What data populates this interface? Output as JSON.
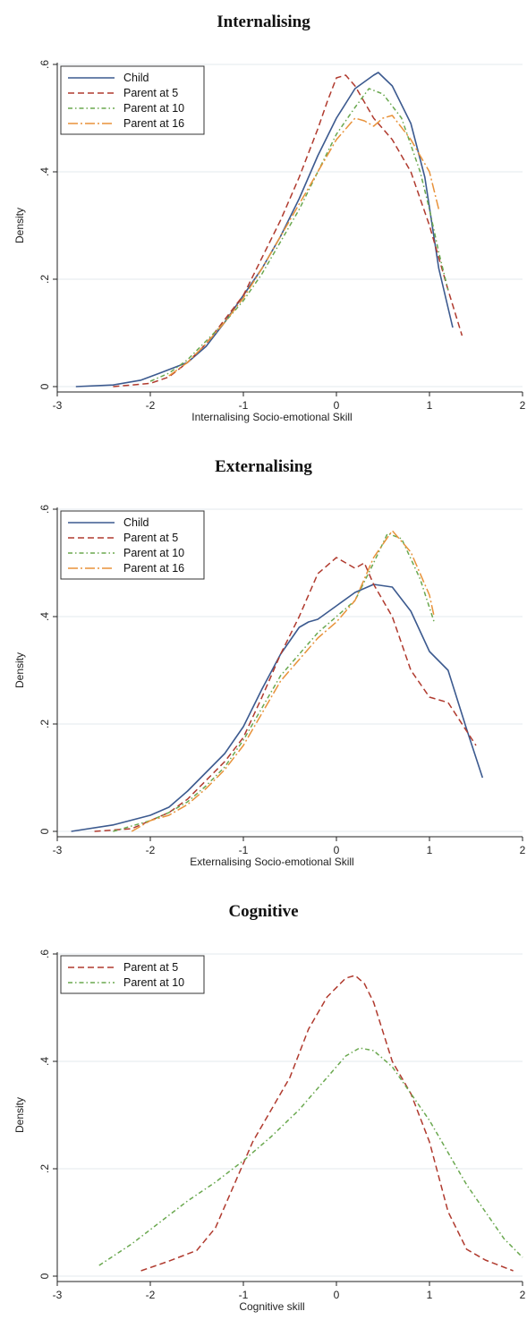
{
  "colors": {
    "child": "#3c5a8f",
    "parent5": "#b03a2e",
    "parent10": "#6aa84f",
    "parent16": "#e8923a",
    "grid": "#e3e9ee",
    "axis": "#222222"
  },
  "chart_data": [
    {
      "type": "line",
      "title": "Internalising",
      "xlabel": "Internalising Socio-emotional Skill",
      "ylabel": "Density",
      "xlim": [
        -3,
        2
      ],
      "ylim": [
        0,
        0.6
      ],
      "xticks": [
        "-3",
        "-2",
        "-1",
        "0",
        "1",
        "2"
      ],
      "yticks": [
        "0",
        ".2",
        ".4",
        ".6"
      ],
      "grid": true,
      "legend": "top-left",
      "series": [
        {
          "name": "Child",
          "style": "solid",
          "color": "#3c5a8f",
          "x": [
            -2.8,
            -2.4,
            -2.1,
            -1.9,
            -1.6,
            -1.4,
            -1.2,
            -1.0,
            -0.8,
            -0.6,
            -0.4,
            -0.2,
            0.0,
            0.2,
            0.4,
            0.45,
            0.6,
            0.8,
            0.95,
            1.1,
            1.25
          ],
          "y": [
            0.0,
            0.003,
            0.012,
            0.025,
            0.045,
            0.075,
            0.12,
            0.17,
            0.22,
            0.28,
            0.35,
            0.43,
            0.5,
            0.555,
            0.58,
            0.585,
            0.56,
            0.49,
            0.39,
            0.22,
            0.11
          ]
        },
        {
          "name": "Parent at 5",
          "style": "dash",
          "color": "#b03a2e",
          "x": [
            -2.4,
            -2.0,
            -1.8,
            -1.6,
            -1.4,
            -1.2,
            -1.0,
            -0.8,
            -0.6,
            -0.4,
            -0.2,
            -0.1,
            0.0,
            0.1,
            0.2,
            0.4,
            0.6,
            0.8,
            1.0,
            1.2,
            1.35
          ],
          "y": [
            0.0,
            0.006,
            0.018,
            0.045,
            0.08,
            0.125,
            0.17,
            0.24,
            0.31,
            0.39,
            0.48,
            0.53,
            0.575,
            0.58,
            0.56,
            0.5,
            0.46,
            0.4,
            0.3,
            0.18,
            0.095
          ]
        },
        {
          "name": "Parent at 10",
          "style": "dashdot",
          "color": "#6aa84f",
          "x": [
            -2.0,
            -1.8,
            -1.6,
            -1.4,
            -1.2,
            -1.0,
            -0.8,
            -0.6,
            -0.4,
            -0.2,
            0.0,
            0.2,
            0.35,
            0.5,
            0.7,
            0.9,
            1.0,
            1.1,
            1.2
          ],
          "y": [
            0.01,
            0.025,
            0.05,
            0.085,
            0.12,
            0.16,
            0.21,
            0.27,
            0.33,
            0.4,
            0.47,
            0.52,
            0.555,
            0.545,
            0.5,
            0.4,
            0.33,
            0.25,
            0.18
          ]
        },
        {
          "name": "Parent at 16",
          "style": "longdash",
          "color": "#e8923a",
          "x": [
            -1.8,
            -1.6,
            -1.4,
            -1.2,
            -1.0,
            -0.8,
            -0.6,
            -0.4,
            -0.2,
            0.0,
            0.2,
            0.3,
            0.4,
            0.5,
            0.6,
            0.8,
            1.0,
            1.1
          ],
          "y": [
            0.02,
            0.045,
            0.08,
            0.12,
            0.165,
            0.22,
            0.28,
            0.34,
            0.4,
            0.46,
            0.5,
            0.495,
            0.485,
            0.5,
            0.505,
            0.46,
            0.4,
            0.33
          ]
        }
      ]
    },
    {
      "type": "line",
      "title": "Externalising",
      "xlabel": "Externalising Socio-emotional Skill",
      "ylabel": "Density",
      "xlim": [
        -3,
        2
      ],
      "ylim": [
        0,
        0.6
      ],
      "xticks": [
        "-3",
        "-2",
        "-1",
        "0",
        "1",
        "2"
      ],
      "yticks": [
        "0",
        ".2",
        ".4",
        ".6"
      ],
      "grid": true,
      "legend": "top-left",
      "series": [
        {
          "name": "Child",
          "style": "solid",
          "color": "#3c5a8f",
          "x": [
            -2.85,
            -2.4,
            -2.0,
            -1.8,
            -1.6,
            -1.4,
            -1.2,
            -1.0,
            -0.8,
            -0.6,
            -0.4,
            -0.3,
            -0.2,
            0.0,
            0.2,
            0.4,
            0.6,
            0.8,
            1.0,
            1.2,
            1.4,
            1.57
          ],
          "y": [
            0.0,
            0.012,
            0.03,
            0.045,
            0.075,
            0.11,
            0.145,
            0.195,
            0.265,
            0.33,
            0.38,
            0.39,
            0.395,
            0.42,
            0.445,
            0.46,
            0.455,
            0.41,
            0.335,
            0.3,
            0.19,
            0.1
          ]
        },
        {
          "name": "Parent at 5",
          "style": "dash",
          "color": "#b03a2e",
          "x": [
            -2.6,
            -2.2,
            -1.8,
            -1.6,
            -1.4,
            -1.2,
            -1.0,
            -0.8,
            -0.6,
            -0.4,
            -0.2,
            0.0,
            0.2,
            0.3,
            0.4,
            0.6,
            0.8,
            1.0,
            1.2,
            1.5
          ],
          "y": [
            0.0,
            0.005,
            0.035,
            0.06,
            0.095,
            0.13,
            0.175,
            0.25,
            0.33,
            0.4,
            0.48,
            0.51,
            0.49,
            0.5,
            0.46,
            0.4,
            0.3,
            0.25,
            0.24,
            0.16
          ]
        },
        {
          "name": "Parent at 10",
          "style": "dashdot",
          "color": "#6aa84f",
          "x": [
            -2.4,
            -2.0,
            -1.8,
            -1.6,
            -1.4,
            -1.2,
            -1.0,
            -0.8,
            -0.6,
            -0.4,
            -0.2,
            0.0,
            0.2,
            0.4,
            0.55,
            0.7,
            0.9,
            1.05
          ],
          "y": [
            0.0,
            0.02,
            0.035,
            0.055,
            0.085,
            0.12,
            0.17,
            0.23,
            0.29,
            0.33,
            0.37,
            0.4,
            0.43,
            0.5,
            0.555,
            0.545,
            0.47,
            0.39
          ]
        },
        {
          "name": "Parent at 16",
          "style": "longdash",
          "color": "#e8923a",
          "x": [
            -2.2,
            -2.0,
            -1.8,
            -1.6,
            -1.4,
            -1.2,
            -1.0,
            -0.8,
            -0.6,
            -0.4,
            -0.2,
            0.0,
            0.2,
            0.4,
            0.6,
            0.8,
            1.0,
            1.05
          ],
          "y": [
            0.0,
            0.02,
            0.03,
            0.05,
            0.08,
            0.115,
            0.16,
            0.22,
            0.28,
            0.32,
            0.36,
            0.39,
            0.43,
            0.51,
            0.56,
            0.52,
            0.44,
            0.4
          ]
        }
      ]
    },
    {
      "type": "line",
      "title": "Cognitive",
      "xlabel": "Cognitive skill",
      "ylabel": "Density",
      "xlim": [
        -3,
        2
      ],
      "ylim": [
        0,
        0.6
      ],
      "xticks": [
        "-3",
        "-2",
        "-1",
        "0",
        "1",
        "2"
      ],
      "yticks": [
        "0",
        ".2",
        ".4",
        ".6"
      ],
      "grid": true,
      "legend": "top-left",
      "series": [
        {
          "name": "Parent at 5",
          "style": "dash",
          "color": "#b03a2e",
          "x": [
            -2.1,
            -1.8,
            -1.5,
            -1.3,
            -1.1,
            -0.9,
            -0.7,
            -0.5,
            -0.3,
            -0.1,
            0.1,
            0.2,
            0.3,
            0.4,
            0.6,
            0.8,
            1.0,
            1.2,
            1.4,
            1.6,
            1.9
          ],
          "y": [
            0.01,
            0.028,
            0.048,
            0.09,
            0.17,
            0.25,
            0.31,
            0.37,
            0.46,
            0.52,
            0.555,
            0.56,
            0.545,
            0.51,
            0.4,
            0.34,
            0.25,
            0.12,
            0.05,
            0.03,
            0.01
          ]
        },
        {
          "name": "Parent at 10",
          "style": "dashdot",
          "color": "#6aa84f",
          "x": [
            -2.55,
            -2.2,
            -1.9,
            -1.6,
            -1.3,
            -1.0,
            -0.7,
            -0.4,
            -0.1,
            0.1,
            0.25,
            0.4,
            0.6,
            0.8,
            1.0,
            1.2,
            1.4,
            1.6,
            1.8,
            2.0
          ],
          "y": [
            0.02,
            0.06,
            0.1,
            0.14,
            0.175,
            0.215,
            0.26,
            0.31,
            0.37,
            0.41,
            0.425,
            0.42,
            0.39,
            0.34,
            0.29,
            0.23,
            0.17,
            0.12,
            0.07,
            0.035
          ]
        }
      ]
    }
  ]
}
